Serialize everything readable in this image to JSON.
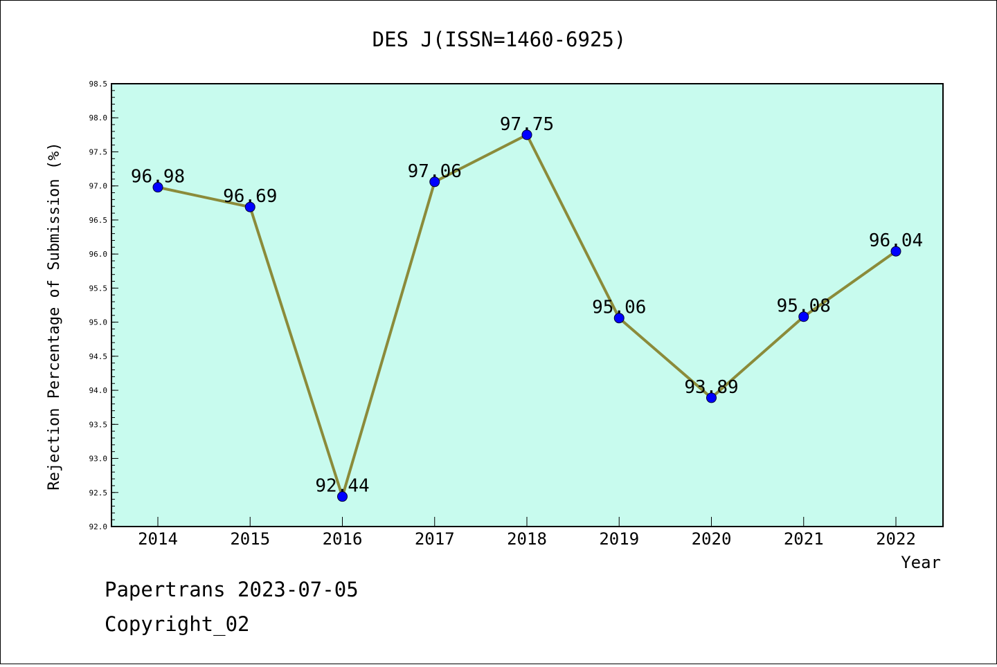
{
  "chart_data": {
    "type": "line",
    "title": "DES J(ISSN=1460-6925)",
    "xlabel": "Year",
    "ylabel": "Rejection Percentage of Submission (%)",
    "x": [
      "2014",
      "2015",
      "2016",
      "2017",
      "2018",
      "2019",
      "2020",
      "2021",
      "2022"
    ],
    "series": [
      {
        "values": [
          96.98,
          96.69,
          92.44,
          97.06,
          97.75,
          95.06,
          93.89,
          95.08,
          96.04
        ],
        "labels": [
          "96.98",
          "96.69",
          "92.44",
          "97.06",
          "97.75",
          "95.06",
          "93.89",
          "95.08",
          "96.04"
        ],
        "line_color": "#8b8b3a",
        "marker_color": "#0000ff"
      }
    ],
    "ylim": [
      92.0,
      98.5
    ],
    "yticks": [
      "92.0",
      "92.5",
      "93.0",
      "93.5",
      "94.0",
      "94.5",
      "95.0",
      "95.5",
      "96.0",
      "96.5",
      "97.0",
      "97.5",
      "98.0",
      "98.5"
    ],
    "grid": false,
    "plot_background": "#c8fbee"
  },
  "footer": {
    "line1": "Papertrans 2023-07-05",
    "line2": "Copyright_02"
  }
}
